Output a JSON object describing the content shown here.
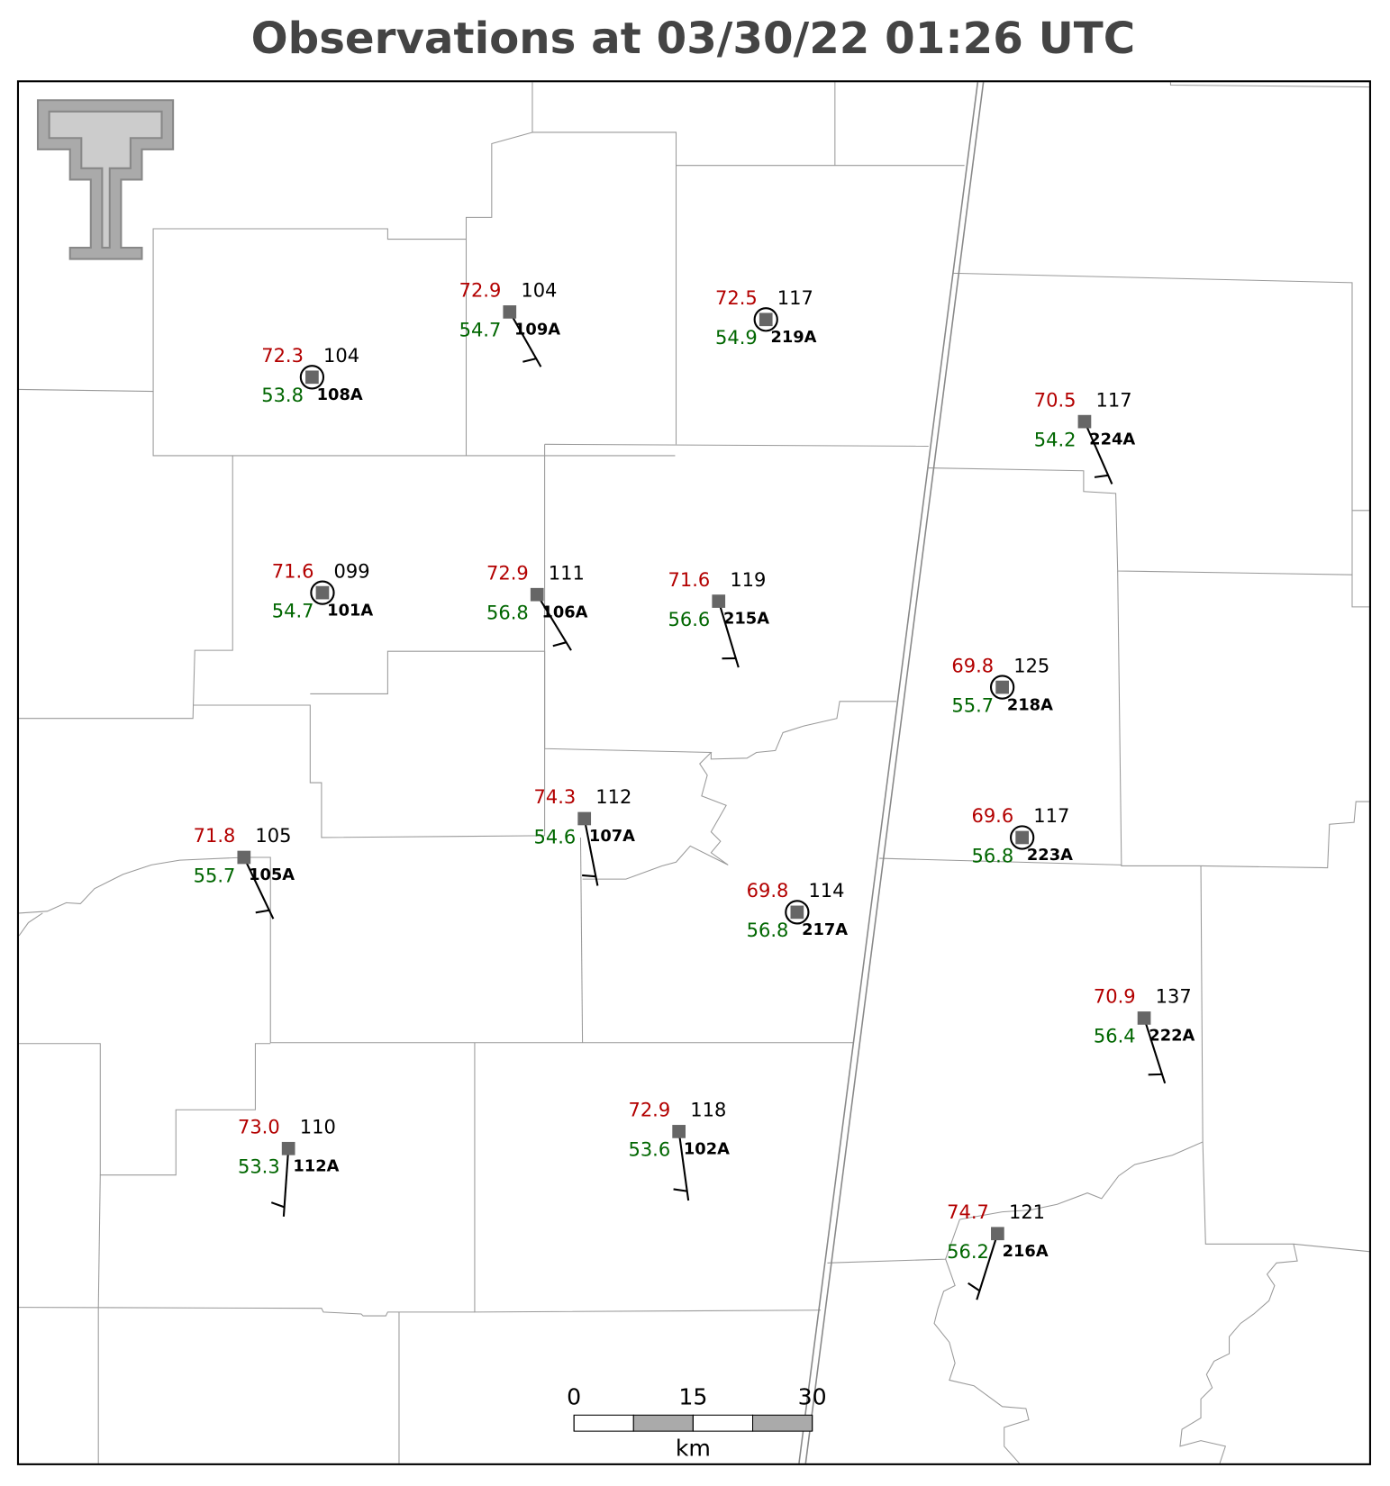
{
  "title": "Observations at 03/30/22 01:26 UTC",
  "stations": [
    {
      "id": "108A",
      "temp": "72.3",
      "dewpoint": "53.8",
      "pressure": "104"
    },
    {
      "id": "109A",
      "temp": "72.9",
      "dewpoint": "54.7",
      "pressure": "104"
    },
    {
      "id": "219A",
      "temp": "72.5",
      "dewpoint": "54.9",
      "pressure": "117"
    },
    {
      "id": "224A",
      "temp": "70.5",
      "dewpoint": "54.2",
      "pressure": "117"
    },
    {
      "id": "101A",
      "temp": "71.6",
      "dewpoint": "54.7",
      "pressure": "099"
    },
    {
      "id": "106A",
      "temp": "72.9",
      "dewpoint": "56.8",
      "pressure": "111"
    },
    {
      "id": "215A",
      "temp": "71.6",
      "dewpoint": "56.6",
      "pressure": "119"
    },
    {
      "id": "218A",
      "temp": "69.8",
      "dewpoint": "55.7",
      "pressure": "125"
    },
    {
      "id": "223A",
      "temp": "69.6",
      "dewpoint": "56.8",
      "pressure": "117"
    },
    {
      "id": "107A",
      "temp": "74.3",
      "dewpoint": "54.6",
      "pressure": "112"
    },
    {
      "id": "105A",
      "temp": "71.8",
      "dewpoint": "55.7",
      "pressure": "105"
    },
    {
      "id": "217A",
      "temp": "69.8",
      "dewpoint": "56.8",
      "pressure": "114"
    },
    {
      "id": "222A",
      "temp": "70.9",
      "dewpoint": "56.4",
      "pressure": "137"
    },
    {
      "id": "112A",
      "temp": "73.0",
      "dewpoint": "53.3",
      "pressure": "110"
    },
    {
      "id": "102A",
      "temp": "72.9",
      "dewpoint": "53.6",
      "pressure": "118"
    },
    {
      "id": "216A",
      "temp": "74.7",
      "dewpoint": "56.2",
      "pressure": "121"
    }
  ],
  "scale_bar": {
    "ticks": [
      0,
      15,
      30
    ],
    "unit": "km"
  }
}
